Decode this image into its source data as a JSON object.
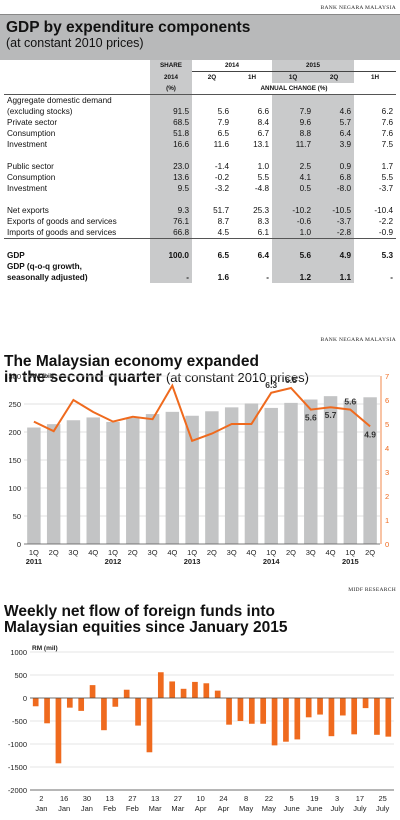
{
  "sources": {
    "table": "BANK NEGARA MALAYSIA",
    "line_chart": "BANK NEGARA MALAYSIA",
    "flow_chart": "MIDF RESEARCH"
  },
  "table": {
    "title": "GDP by expenditure components",
    "subtitle": "(at constant 2010 prices)",
    "header": {
      "share": "SHARE",
      "year2014": "2014",
      "year2015": "2015",
      "share_year": "2014",
      "share_unit": "(%)",
      "q2014a": "2Q",
      "q2014b": "1H",
      "q2015a": "1Q",
      "q2015b": "2Q",
      "q2015c": "1H",
      "annual_change": "ANNUAL CHANGE (%)"
    },
    "rows": [
      {
        "label": "Aggregate domestic demand",
        "values": [
          "",
          "",
          "",
          "",
          "",
          ""
        ]
      },
      {
        "label": "(excluding stocks)",
        "values": [
          "91.5",
          "5.6",
          "6.6",
          "7.9",
          "4.6",
          "6.2"
        ]
      },
      {
        "label": "Private sector",
        "values": [
          "68.5",
          "7.9",
          "8.4",
          "9.6",
          "5.7",
          "7.6"
        ]
      },
      {
        "label": "Consumption",
        "values": [
          "51.8",
          "6.5",
          "6.7",
          "8.8",
          "6.4",
          "7.6"
        ]
      },
      {
        "label": "Investment",
        "values": [
          "16.6",
          "11.6",
          "13.1",
          "11.7",
          "3.9",
          "7.5"
        ]
      },
      {
        "label": "",
        "values": [
          "",
          "",
          "",
          "",
          "",
          ""
        ]
      },
      {
        "label": "Public sector",
        "values": [
          "23.0",
          "-1.4",
          "1.0",
          "2.5",
          "0.9",
          "1.7"
        ]
      },
      {
        "label": "Consumption",
        "values": [
          "13.6",
          "-0.2",
          "5.5",
          "4.1",
          "6.8",
          "5.5"
        ]
      },
      {
        "label": "Investment",
        "values": [
          "9.5",
          "-3.2",
          "-4.8",
          "0.5",
          "-8.0",
          "-3.7"
        ]
      },
      {
        "label": "",
        "values": [
          "",
          "",
          "",
          "",
          "",
          ""
        ]
      },
      {
        "label": "Net exports",
        "values": [
          "9.3",
          "51.7",
          "25.3",
          "-10.2",
          "-10.5",
          "-10.4"
        ]
      },
      {
        "label": "Exports of goods and services",
        "values": [
          "76.1",
          "8.7",
          "8.3",
          "-0.6",
          "-3.7",
          "-2.2"
        ]
      },
      {
        "label": "Imports of goods and services",
        "values": [
          "66.8",
          "4.5",
          "6.1",
          "1.0",
          "-2.8",
          "-0.9"
        ]
      },
      {
        "label": "",
        "values": [
          "",
          "",
          "",
          "",
          "",
          ""
        ]
      },
      {
        "label": "GDP",
        "values": [
          "100.0",
          "6.5",
          "6.4",
          "5.6",
          "4.9",
          "5.3"
        ]
      },
      {
        "label": "GDP (q-o-q growth,",
        "values": [
          "",
          "",
          "",
          "",
          "",
          ""
        ]
      },
      {
        "label": "seasonally adjusted)",
        "values": [
          "-",
          "1.6",
          "-",
          "1.2",
          "1.1",
          "-"
        ]
      }
    ]
  },
  "chart_data": [
    {
      "type": "bar",
      "title": "The Malaysian economy expanded",
      "title_line2": "in the second quarter",
      "subtitle": "(at constant 2010 prices)",
      "ylabel": "RM (bil)",
      "ylim": [
        0,
        300
      ],
      "yticks": [
        "0",
        "50",
        "100",
        "150",
        "200",
        "250",
        "300"
      ],
      "y2lim": [
        0,
        7
      ],
      "y2ticks": [
        "0",
        "1",
        "2",
        "3",
        "4",
        "5",
        "6",
        "7"
      ],
      "categories": [
        "1Q",
        "2Q",
        "3Q",
        "4Q",
        "1Q",
        "2Q",
        "3Q",
        "4Q",
        "1Q",
        "2Q",
        "3Q",
        "4Q",
        "1Q",
        "2Q",
        "3Q",
        "4Q",
        "1Q",
        "2Q"
      ],
      "year_labels": [
        "2011",
        "2012",
        "2013",
        "2014",
        "2015"
      ],
      "year_first_index": [
        0,
        4,
        8,
        12,
        16
      ],
      "series": [
        {
          "type": "bar",
          "values": [
            208,
            214,
            221,
            226,
            218,
            225,
            232,
            236,
            229,
            237,
            244,
            251,
            243,
            252,
            258,
            264,
            256,
            262
          ]
        },
        {
          "type": "line",
          "axis": "right",
          "values": [
            5.1,
            4.7,
            6.0,
            5.5,
            5.1,
            5.3,
            5.2,
            6.6,
            4.3,
            4.6,
            5.0,
            5.0,
            6.3,
            6.5,
            5.6,
            5.7,
            5.6,
            4.9
          ]
        }
      ],
      "point_labels": [
        {
          "index": 12,
          "text": "6.3"
        },
        {
          "index": 13,
          "text": "6.5"
        },
        {
          "index": 14,
          "text": "5.6"
        },
        {
          "index": 15,
          "text": "5.7"
        },
        {
          "index": 16,
          "text": "5.6"
        },
        {
          "index": 17,
          "text": "4.9"
        }
      ],
      "colors": {
        "bar": "#c3c4c5",
        "line": "#ef6a1e",
        "right_axis": "#ef6a1e"
      }
    },
    {
      "type": "bar",
      "title": "Weekly net flow of foreign funds into",
      "title_line2": "Malaysian equities since January 2015",
      "ylabel": "RM (mil)",
      "ylim": [
        -2000,
        1000
      ],
      "yticks": [
        "1000",
        "500",
        "0",
        "-500",
        "-1000",
        "-1500",
        "-2000"
      ],
      "values": [
        -180,
        -550,
        -1420,
        -210,
        -280,
        280,
        -700,
        -190,
        180,
        -600,
        -1180,
        560,
        360,
        200,
        350,
        320,
        160,
        -580,
        -500,
        -560,
        -560,
        -1030,
        -950,
        -900,
        -420,
        -360,
        -830,
        -380,
        -790,
        -220,
        -800,
        -840
      ],
      "tick_day_labels": [
        "2",
        "16",
        "30",
        "13",
        "27",
        "13",
        "27",
        "10",
        "24",
        "8",
        "22",
        "5",
        "19",
        "3",
        "17",
        "25"
      ],
      "tick_month_labels": [
        "Jan",
        "Jan",
        "Jan",
        "Feb",
        "Feb",
        "Mar",
        "Mar",
        "Apr",
        "Apr",
        "May",
        "May",
        "June",
        "June",
        "July",
        "July",
        "July"
      ],
      "colors": {
        "bar": "#ef6a1e"
      }
    }
  ]
}
